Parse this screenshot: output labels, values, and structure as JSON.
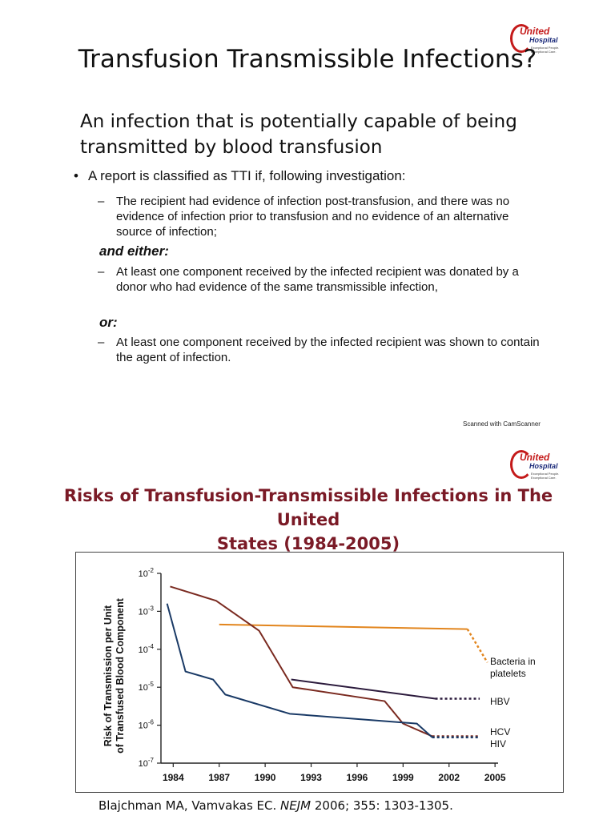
{
  "logo": {
    "line1": "United",
    "line2": "Hospital",
    "tagline": "Exceptional People. Exceptional Care."
  },
  "slide1": {
    "title": "Transfusion Transmissible Infections?",
    "definition": "An infection that is potentially capable of being transmitted by blood transfusion",
    "bullet": "A report is classified as TTI if, following investigation:",
    "criterion1": "The recipient had evidence of infection post-transfusion, and there was no evidence of infection prior to transfusion and no evidence of an alternative source of infection;",
    "and_either": "and either:",
    "criterion2": "At least one component received by the infected recipient was donated by a donor who had evidence of the same transmissible infection,",
    "or": "or:",
    "criterion3": "At least one component received by the infected recipient was shown to contain the agent of infection.",
    "scanned": "Scanned with CamScanner"
  },
  "slide2": {
    "title_line1": "Risks of Transfusion-Transmissible Infections in The United",
    "title_line2": "States (1984-2005)",
    "citation_prefix": "Blajchman MA, Vamvakas EC. ",
    "citation_journal": "NEJM",
    "citation_suffix": " 2006; 355: 1303-1305."
  },
  "chart_data": {
    "type": "line",
    "ylabel_line1": "Risk of Transmission per Unit",
    "ylabel_line2": "of Transfused Blood Component",
    "y_scale": "log",
    "ylim": [
      1e-07,
      0.01
    ],
    "xlim": [
      1983.2,
      2005.2
    ],
    "x_ticks": [
      1984,
      1987,
      1990,
      1993,
      1996,
      1999,
      2002,
      2005
    ],
    "x_tick_labels": [
      "1984",
      "1987",
      "1990",
      "1993",
      "1996",
      "1999",
      "2002",
      "2005"
    ],
    "y_ticks": [
      0.01,
      0.001,
      0.0001,
      1e-05,
      1e-06,
      1e-07
    ],
    "y_tick_labels": [
      {
        "base": "10",
        "exp": "-2"
      },
      {
        "base": "10",
        "exp": "-3"
      },
      {
        "base": "10",
        "exp": "-4"
      },
      {
        "base": "10",
        "exp": "-5"
      },
      {
        "base": "10",
        "exp": "-6"
      },
      {
        "base": "10",
        "exp": "-7"
      }
    ],
    "series": [
      {
        "name": "Bacteria in platelets",
        "label_lines": [
          "Bacteria in",
          "platelets"
        ],
        "color": "#e2851d",
        "solid": [
          [
            1987,
            0.00045
          ],
          [
            2003.2,
            0.00034
          ]
        ],
        "dashed": [
          [
            2003.2,
            0.00034
          ],
          [
            2004.5,
            4.5e-05
          ]
        ]
      },
      {
        "name": "HBV",
        "label_lines": [
          "HBV"
        ],
        "color": "#2b1a3c",
        "solid": [
          [
            1991.7,
            1.6e-05
          ],
          [
            2001.1,
            5e-06
          ]
        ],
        "dashed": [
          [
            2001.1,
            5e-06
          ],
          [
            2004.0,
            5e-06
          ]
        ]
      },
      {
        "name": "HCV",
        "label_lines": [
          "HCV"
        ],
        "color": "#7a2a20",
        "solid": [
          [
            1983.8,
            0.0045
          ],
          [
            1986.8,
            0.0019
          ],
          [
            1989.6,
            0.00031
          ],
          [
            1991.8,
            1e-05
          ],
          [
            1997.8,
            4.3e-06
          ],
          [
            1999.0,
            1.1e-06
          ],
          [
            2000.9,
            5.1e-07
          ]
        ],
        "dashed": [
          [
            2000.9,
            5.1e-07
          ],
          [
            2004.0,
            5.1e-07
          ]
        ]
      },
      {
        "name": "HIV",
        "label_lines": [
          "HIV"
        ],
        "color": "#1a3a66",
        "solid": [
          [
            1983.6,
            0.0016
          ],
          [
            1984.8,
            2.6e-05
          ],
          [
            1986.6,
            1.6e-05
          ],
          [
            1987.4,
            6.4e-06
          ],
          [
            1991.6,
            2e-06
          ],
          [
            1999.9,
            1.1e-06
          ],
          [
            2000.9,
            4.8e-07
          ]
        ],
        "dashed": [
          [
            2000.9,
            4.8e-07
          ],
          [
            2004.0,
            4.8e-07
          ]
        ]
      }
    ]
  }
}
